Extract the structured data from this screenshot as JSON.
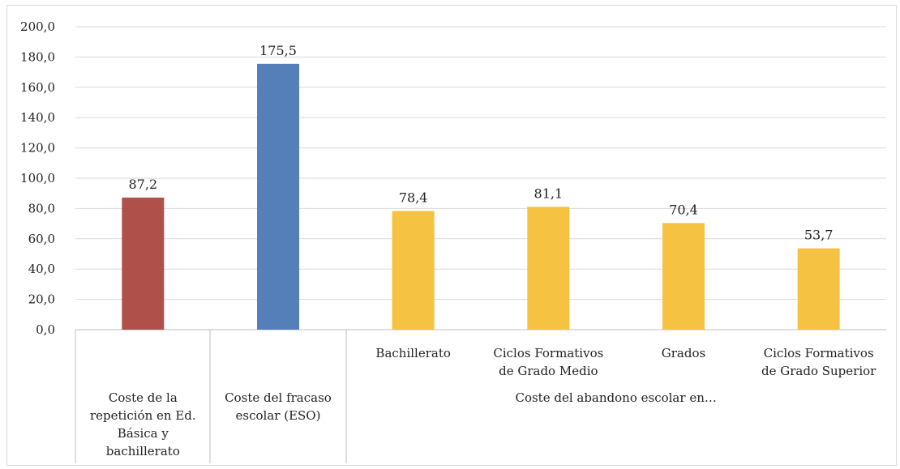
{
  "chart_data": {
    "type": "bar",
    "title": "",
    "xlabel": "",
    "ylabel": "",
    "ylim": [
      0,
      200
    ],
    "yticks": [
      0,
      20,
      40,
      60,
      80,
      100,
      120,
      140,
      160,
      180,
      200
    ],
    "ytick_labels": [
      "0,0",
      "20,0",
      "40,0",
      "60,0",
      "80,0",
      "100,0",
      "120,0",
      "140,0",
      "160,0",
      "180,0",
      "200,0"
    ],
    "grid": true,
    "legend": "none",
    "categories": [
      {
        "label": [
          "Coste de la",
          "repetición en Ed.",
          "Básica y",
          "bachillerato"
        ],
        "value": 87.2,
        "value_label": "87,2",
        "color": "#b0504a"
      },
      {
        "label": [
          "Coste del fracaso",
          "escolar (ESO)"
        ],
        "value": 175.5,
        "value_label": "175,5",
        "color": "#557fb8"
      },
      {
        "label": [
          "Bachillerato"
        ],
        "value": 78.4,
        "value_label": "78,4",
        "color": "#f5c242",
        "group": 0
      },
      {
        "label": [
          "Ciclos Formativos",
          "de Grado Medio"
        ],
        "value": 81.1,
        "value_label": "81,1",
        "color": "#f5c242",
        "group": 0
      },
      {
        "label": [
          "Grados"
        ],
        "value": 70.4,
        "value_label": "70,4",
        "color": "#f5c242",
        "group": 0
      },
      {
        "label": [
          "Ciclos Formativos",
          "de Grado Superior"
        ],
        "value": 53.7,
        "value_label": "53,7",
        "color": "#f5c242",
        "group": 0
      }
    ],
    "groups": [
      {
        "label": "Coste del abandono escolar en…"
      }
    ]
  }
}
